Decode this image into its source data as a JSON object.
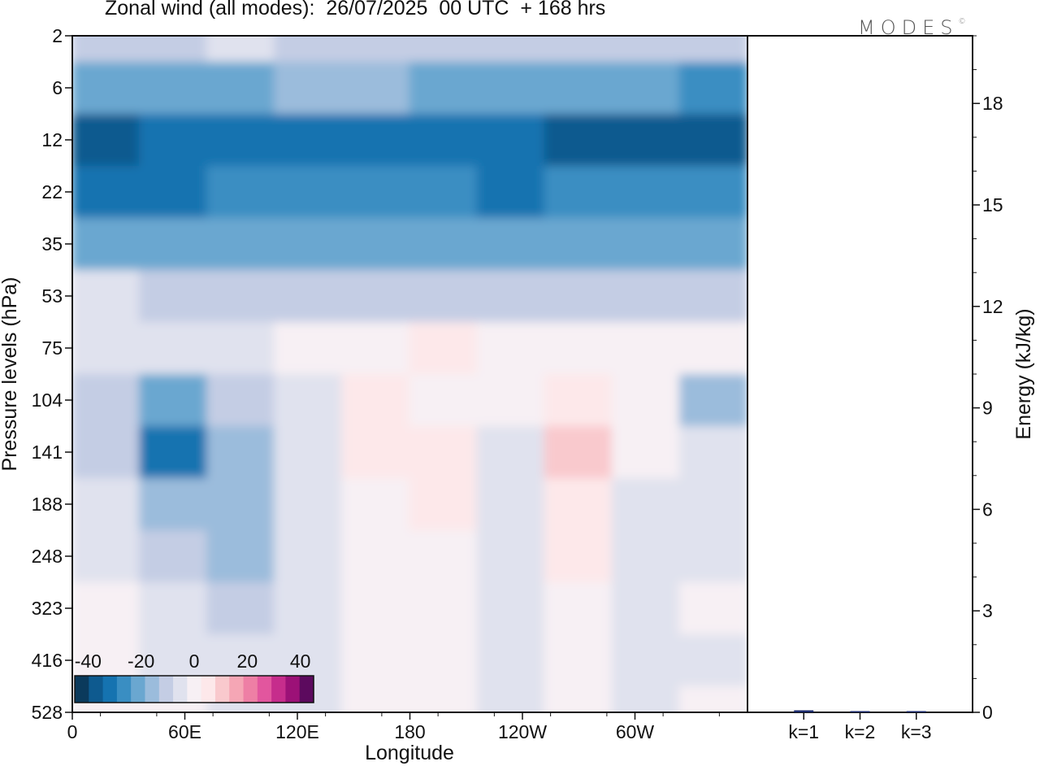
{
  "header": {
    "title": "Zonal wind (all modes):  26/07/2025  00 UTC  + 168 hrs",
    "logo": "MODES",
    "logo_mark": "©"
  },
  "colors": {
    "scale": [
      "#0b3a5c",
      "#0e5a8f",
      "#1573b0",
      "#3a8ec2",
      "#6aa7d0",
      "#9bbcdc",
      "#c4cde4",
      "#e0e2ee",
      "#f7f0f4",
      "#fde8ea",
      "#f9c9cd",
      "#f5a6b5",
      "#ee7fa5",
      "#e2569e",
      "#c62d8c",
      "#9c1177",
      "#5c0a5e"
    ],
    "axis": "#111111"
  },
  "chart_data": [
    {
      "type": "heatmap",
      "title": "Zonal wind (all modes):  26/07/2025  00 UTC  + 168 hrs",
      "xlabel": "Longitude",
      "ylabel": "Pressure levels (hPa)",
      "x_ticks": [
        "0",
        "60E",
        "120E",
        "180",
        "120W",
        "60W"
      ],
      "x_tick_values": [
        0,
        60,
        120,
        180,
        240,
        300
      ],
      "xlim": [
        0,
        360
      ],
      "y_ticks": [
        "2",
        "6",
        "12",
        "22",
        "35",
        "53",
        "75",
        "104",
        "141",
        "188",
        "248",
        "323",
        "416",
        "528"
      ],
      "y_inverted": true,
      "colorbar": {
        "ticks": [
          "-40",
          "-20",
          "0",
          "20",
          "40"
        ],
        "range": [
          -45,
          45
        ],
        "levels": 17
      },
      "bands": [
        {
          "level": "2",
          "wind": [
            -10,
            -12,
            -6,
            -8,
            -9,
            -12,
            -8,
            -10,
            -11,
            -12
          ]
        },
        {
          "level": "6",
          "wind": [
            -20,
            -22,
            -20,
            -18,
            -18,
            -19,
            -19,
            -22,
            -22,
            -24
          ]
        },
        {
          "level": "12",
          "wind": [
            -35,
            -34,
            -31,
            -31,
            -30,
            -30,
            -34,
            -36,
            -38,
            -36
          ]
        },
        {
          "level": "22",
          "wind": [
            -30,
            -31,
            -29,
            -28,
            -28,
            -29,
            -30,
            -29,
            -26,
            -28
          ]
        },
        {
          "level": "35",
          "wind": [
            -22,
            -22,
            -21,
            -20,
            -20,
            -19,
            -20,
            -21,
            -22,
            -22
          ]
        },
        {
          "level": "53",
          "wind": [
            -6,
            -8,
            -9,
            -8,
            -8,
            -8,
            -10,
            -10,
            -13,
            -12
          ]
        },
        {
          "level": "75",
          "wind": [
            -3,
            -4,
            -6,
            -2,
            1,
            3,
            2,
            1,
            -1,
            -2
          ]
        },
        {
          "level": "104",
          "wind": [
            -10,
            -22,
            -12,
            -3,
            4,
            2,
            -1,
            5,
            -1,
            -15
          ]
        },
        {
          "level": "141",
          "wind": [
            -12,
            -32,
            -14,
            -3,
            4,
            6,
            -4,
            9,
            -2,
            -6
          ]
        },
        {
          "level": "188",
          "wind": [
            -6,
            -16,
            -15,
            -4,
            2,
            3,
            -6,
            6,
            -4,
            -4
          ]
        },
        {
          "level": "248",
          "wind": [
            -3,
            -9,
            -14,
            -5,
            1,
            1,
            -7,
            3,
            -5,
            -4
          ]
        },
        {
          "level": "323",
          "wind": [
            1,
            -5,
            -9,
            -4,
            1,
            2,
            -6,
            1,
            -4,
            -2
          ]
        },
        {
          "level": "416",
          "wind": [
            1,
            -3,
            -5,
            -4,
            1,
            2,
            -7,
            1,
            -3,
            -3
          ]
        },
        {
          "level": "528",
          "wind": [
            0,
            -2,
            -3,
            -3,
            0,
            1,
            -5,
            0,
            -3,
            -2
          ]
        }
      ]
    },
    {
      "type": "bar",
      "categories": [
        "k=1",
        "k=2",
        "k=3"
      ],
      "values": [
        0.06,
        0.02,
        0.005
      ],
      "ylabel": "Energy (kJ/kg)",
      "y_ticks": [
        "0",
        "3",
        "6",
        "9",
        "12",
        "15",
        "18"
      ],
      "ylim": [
        0,
        20
      ]
    }
  ]
}
